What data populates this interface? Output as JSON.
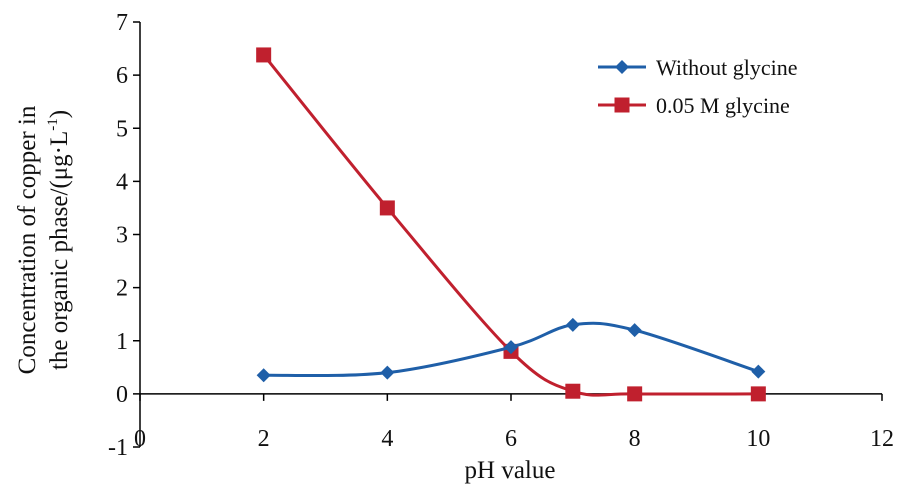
{
  "chart_data": {
    "type": "line",
    "title": "",
    "xlabel": "pH value",
    "ylabel_line1": "Concentration of copper in",
    "ylabel_line2": "the organic phase/(μg·L",
    "ylabel_sup": "-1",
    "ylabel_close": ")",
    "xlim": [
      0,
      12
    ],
    "ylim": [
      -1,
      7
    ],
    "xticks": [
      "0",
      "2",
      "4",
      "6",
      "8",
      "10",
      "12"
    ],
    "yticks": [
      "-1",
      "0",
      "1",
      "2",
      "3",
      "4",
      "5",
      "6",
      "7"
    ],
    "grid": false,
    "legend_position": "top-right",
    "series": [
      {
        "name": "Without glycine",
        "color": "#1f5fa8",
        "marker": "diamond",
        "x": [
          2,
          4,
          6,
          7,
          8,
          10
        ],
        "y": [
          0.35,
          0.4,
          0.88,
          1.3,
          1.2,
          0.42
        ]
      },
      {
        "name": "0.05 M glycine",
        "color": "#c0202e",
        "marker": "square",
        "x": [
          2,
          4,
          6,
          7,
          8,
          10
        ],
        "y": [
          6.38,
          3.5,
          0.8,
          0.05,
          0.0,
          0.0
        ]
      }
    ]
  }
}
